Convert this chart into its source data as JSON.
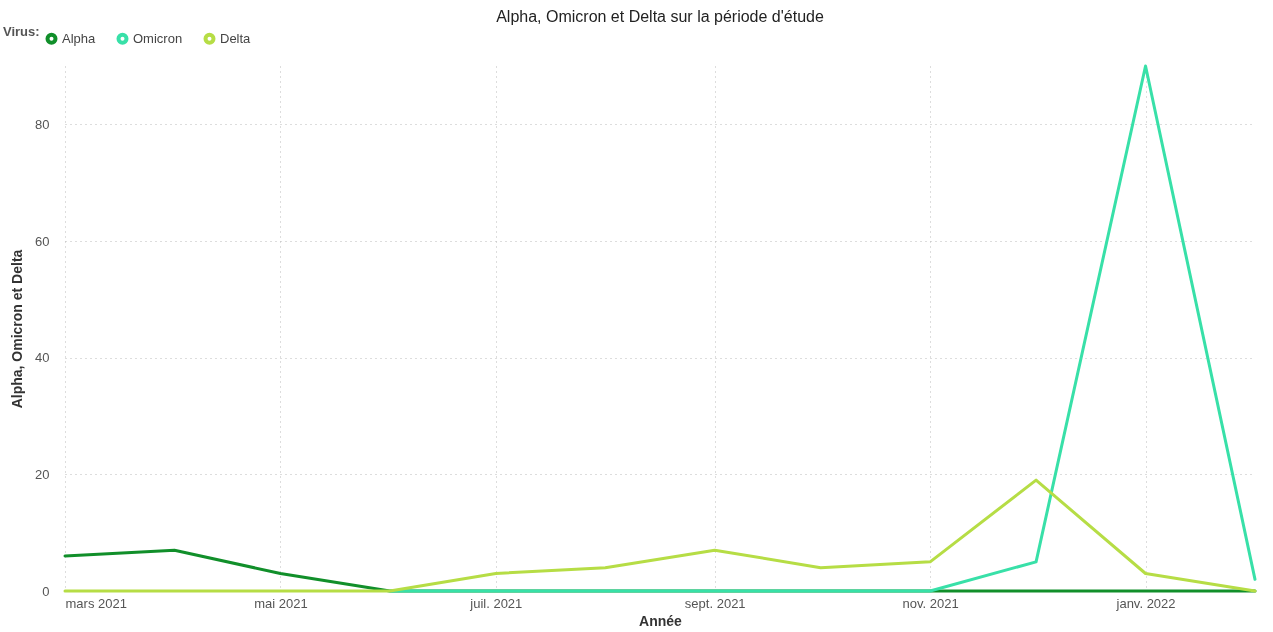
{
  "chart_data": {
    "type": "line",
    "title": "Alpha, Omicron et Delta sur la période d'étude",
    "xlabel": "Année",
    "ylabel": "Alpha, Omicron et Delta",
    "legend_title": "Virus:",
    "legend": "top left",
    "grid": true,
    "line_style": "solid",
    "marker": "none",
    "x": [
      "2021-03",
      "2021-04",
      "2021-05",
      "2021-06",
      "2021-07",
      "2021-08",
      "2021-09",
      "2021-10",
      "2021-11",
      "2021-12",
      "2022-01",
      "2022-02"
    ],
    "xlim": [
      "2021-03",
      "2022-02"
    ],
    "xticks": [
      {
        "value": "2021-03",
        "label": "mars 2021"
      },
      {
        "value": "2021-05",
        "label": "mai 2021"
      },
      {
        "value": "2021-07",
        "label": "juil. 2021"
      },
      {
        "value": "2021-09",
        "label": "sept. 2021"
      },
      {
        "value": "2021-11",
        "label": "nov. 2021"
      },
      {
        "value": "2022-01",
        "label": "janv. 2022"
      }
    ],
    "ylim": [
      0,
      90
    ],
    "yticks": [
      0,
      20,
      40,
      60,
      80
    ],
    "series": [
      {
        "name": "Alpha",
        "color": "#118f2a",
        "values": [
          6,
          7,
          3,
          0,
          0,
          0,
          0,
          0,
          0,
          0,
          0,
          0
        ]
      },
      {
        "name": "Omicron",
        "color": "#38e0a8",
        "values": [
          null,
          null,
          null,
          0,
          0,
          0,
          0,
          0,
          0,
          5,
          90,
          2
        ]
      },
      {
        "name": "Delta",
        "color": "#b6dd45",
        "values": [
          0,
          0,
          0,
          0,
          3,
          4,
          7,
          4,
          5,
          19,
          3,
          0
        ]
      }
    ]
  }
}
